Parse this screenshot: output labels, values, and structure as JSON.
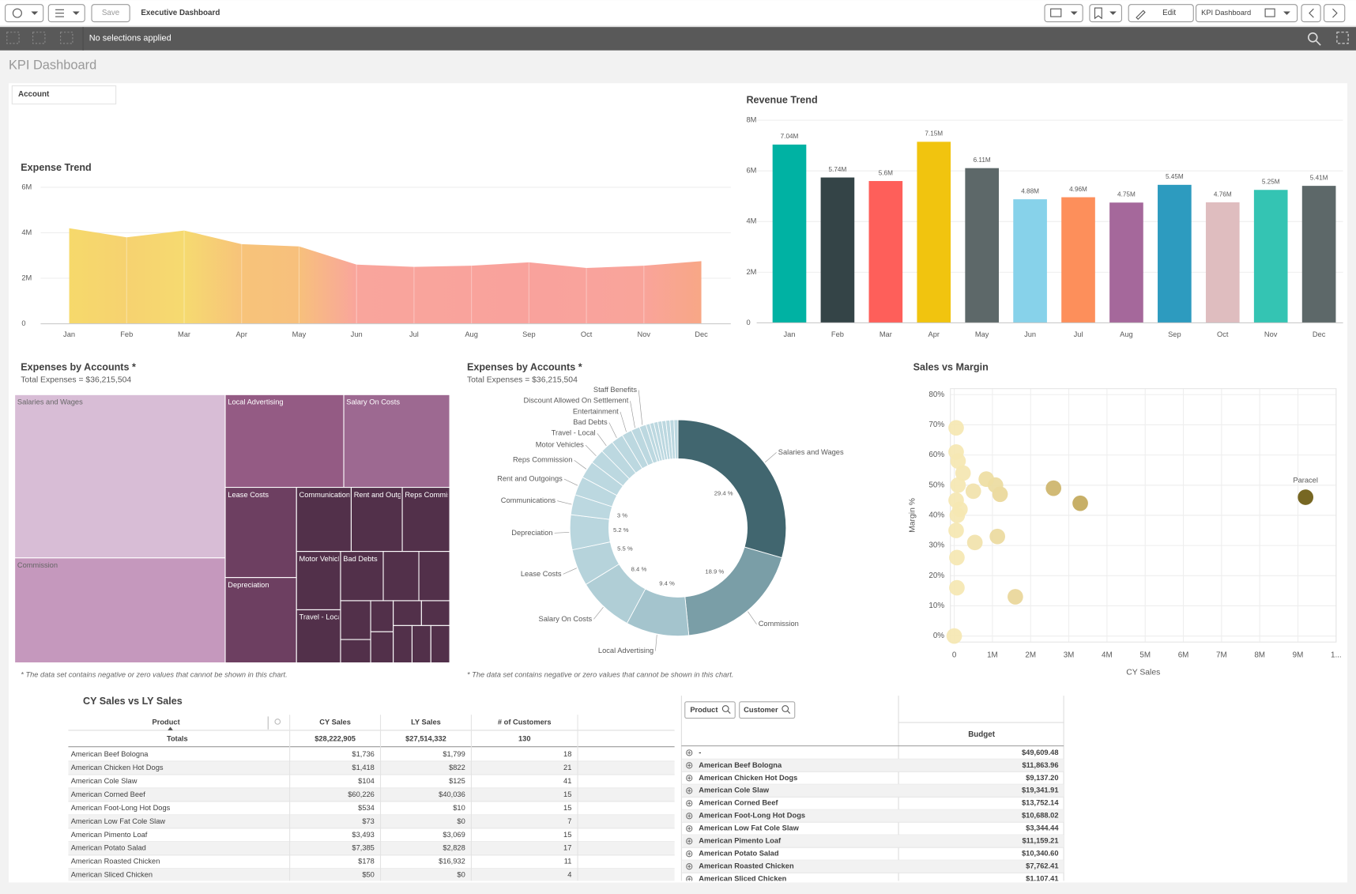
{
  "toolbar": {
    "save": "Save",
    "app_title": "Executive Dashboard",
    "edit": "Edit",
    "sheet_name": "KPI Dashboard"
  },
  "selection_bar": {
    "text": "No selections applied"
  },
  "sheet_title": "KPI Dashboard",
  "filter": {
    "label": "Account"
  },
  "chart_data": [
    {
      "type": "area",
      "title": "Expense Trend",
      "categories": [
        "Jan",
        "Feb",
        "Mar",
        "Apr",
        "May",
        "Jun",
        "Jul",
        "Aug",
        "Sep",
        "Oct",
        "Nov",
        "Dec"
      ],
      "values": [
        4200000,
        3800000,
        4100000,
        3500000,
        3400000,
        2600000,
        2500000,
        2550000,
        2700000,
        2450000,
        2550000,
        2750000
      ],
      "colors": [
        "#f6d96b",
        "#f6d270",
        "#f6da70",
        "#f7c37a",
        "#f7c07c",
        "#f9a59c",
        "#f9a49c",
        "#f9a39c",
        "#f9a29c",
        "#f9a39c",
        "#f9a49a",
        "#f8a786"
      ],
      "ylim": [
        0,
        6200000
      ],
      "yticks": [
        0,
        {
          "value": 2000000,
          "label": "2M"
        },
        {
          "value": 4000000,
          "label": "4M"
        },
        {
          "value": 6000000,
          "label": "6M"
        }
      ],
      "grid": true
    },
    {
      "type": "bar",
      "title": "Revenue Trend",
      "categories": [
        "Jan",
        "Feb",
        "Mar",
        "Apr",
        "May",
        "Jun",
        "Jul",
        "Aug",
        "Sep",
        "Oct",
        "Nov",
        "Dec"
      ],
      "values": [
        7040000,
        5740000,
        5600000,
        7150000,
        6110000,
        4880000,
        4960000,
        4750000,
        5450000,
        4760000,
        5250000,
        5410000
      ],
      "value_labels": [
        "7.04M",
        "5.74M",
        "5.6M",
        "7.15M",
        "6.11M",
        "4.88M",
        "4.96M",
        "4.75M",
        "5.45M",
        "4.76M",
        "5.25M",
        "5.41M"
      ],
      "colors": [
        "#00b2a3",
        "#344447",
        "#fe5f5a",
        "#f1c40f",
        "#5d6869",
        "#87d2ea",
        "#fd8f5b",
        "#a5689b",
        "#2d9bbf",
        "#dfbdbf",
        "#34c4b3",
        "#5d6869"
      ],
      "ylim": [
        0,
        8300000
      ],
      "yticks": [
        0,
        {
          "value": 2000000,
          "label": "2M"
        },
        {
          "value": 4000000,
          "label": "4M"
        },
        {
          "value": 6000000,
          "label": "6M"
        },
        {
          "value": 8000000,
          "label": "8M"
        }
      ],
      "grid": true
    },
    {
      "type": "treemap",
      "title": "Expenses by Accounts *",
      "subtitle": "Total Expenses = $36,215,504",
      "footnote": "* The data set contains negative or zero values that cannot be shown in this chart.",
      "categories": [
        "Salaries and Wages",
        "Commission",
        "Local Advertising",
        "Salary On Costs",
        "Lease Costs",
        "Depreciation",
        "Communications",
        "Rent and Outgoings",
        "Reps Commission",
        "Motor Vehicles",
        "Travel - Local",
        "Bad Debts",
        null,
        null,
        null,
        null,
        null,
        null,
        null,
        null,
        null,
        null,
        null
      ],
      "values": [
        29.4,
        18.9,
        9.4,
        8.4,
        5.5,
        5.2,
        3,
        2.8,
        2.6,
        2.2,
        2.0,
        1.8,
        1.5,
        1.3,
        1.0,
        0.6,
        0.6,
        0.6,
        0.6,
        0.6,
        0.6,
        0.6,
        0.6
      ],
      "colors": [
        "#d8bdd6",
        "#c598bd",
        "#945b84",
        "#9d6991",
        "#6d3f61",
        "#6d3f61",
        "#52304a",
        "#52304a",
        "#52304a",
        "#52304a",
        "#52304a",
        "#52304a",
        "#52304a",
        "#52304a",
        "#52304a",
        "#52304a",
        "#52304a",
        "#52304a",
        "#52304a",
        "#52304a",
        "#52304a",
        "#52304a",
        "#52304a"
      ]
    },
    {
      "type": "donut",
      "title": "Expenses by Accounts *",
      "subtitle": "Total Expenses = $36,215,504",
      "footnote": "* The data set contains negative or zero values that cannot be shown in this chart.",
      "categories": [
        "Salaries and Wages",
        "Commission",
        "Local Advertising",
        "Salary On Costs",
        "Lease Costs",
        "Depreciation",
        "Communications",
        "Rent and Outgoings",
        "Reps Commission",
        "Motor Vehicles",
        "Travel - Local",
        "Bad Debts",
        "Entertainment",
        "Discount Allowed On Settlement",
        "Staff Benefits",
        null,
        null,
        null,
        null,
        null,
        null,
        null,
        null
      ],
      "values": [
        29.4,
        18.9,
        9.4,
        8.4,
        5.5,
        5.2,
        3,
        2.8,
        2.6,
        2.2,
        2.0,
        1.8,
        1.5,
        1.3,
        1.0,
        0.6,
        0.6,
        0.6,
        0.6,
        0.6,
        0.6,
        0.6,
        0.6
      ],
      "value_labels": [
        "29.4 %",
        "18.9 %",
        "9.4 %",
        "8.4 %",
        "5.5 %",
        "5.2 %",
        "3 %",
        null,
        null,
        null,
        null,
        null,
        null,
        null,
        null,
        null,
        null,
        null,
        null,
        null,
        null,
        null,
        null
      ],
      "colors": [
        "#41666f",
        "#7a9ea7",
        "#a4c4cd",
        "#b0ced6",
        "#b6d3db",
        "#b9d6de",
        "#bcd8e0",
        "#bcd8e0",
        "#bcd8e0",
        "#bcd8e0",
        "#bcd8e0",
        "#bcd8e0",
        "#bcd8e0",
        "#bcd8e0",
        "#bcd8e0",
        "#bcd8e0",
        "#bcd8e0",
        "#bcd8e0",
        "#bcd8e0",
        "#bcd8e0",
        "#bcd8e0",
        "#bcd8e0",
        "#bcd8e0"
      ]
    },
    {
      "type": "scatter",
      "title": "Sales vs Margin",
      "x_label": "CY Sales",
      "y_label": "Margin %",
      "x": [
        9200000,
        3300000,
        2600000,
        1600000,
        1200000,
        1080000,
        840000,
        1130000,
        540000,
        500000,
        230000,
        100000,
        50000,
        50000,
        100000,
        50000,
        80000,
        50000,
        70000,
        70000,
        0,
        150000
      ],
      "y": [
        46,
        44,
        49,
        13,
        47,
        50,
        52,
        33,
        31,
        48,
        54,
        58,
        61,
        69,
        50,
        45,
        40,
        35,
        26,
        16,
        0,
        42
      ],
      "colors": [
        "#6b5a10",
        "#c2a85a",
        "#cdb46a",
        "#e9d699",
        "#ead89a",
        "#ecdb9f",
        "#eedda2",
        "#ecda9e",
        "#f1e2ab",
        "#f1e2ab",
        "#f4e6b1",
        "#f5e7b2",
        "#f5e7b2",
        "#f5e7b2",
        "#f5e7b2",
        "#f5e7b2",
        "#f5e7b2",
        "#f5e7b2",
        "#f5e7b2",
        "#f5e7b2",
        "#f5e7b2",
        "#f5e7b2"
      ],
      "point_labels": [
        "Paracel",
        null,
        null,
        null,
        null,
        null,
        null,
        null,
        null,
        null,
        null,
        null,
        null,
        null,
        null,
        null,
        null,
        null,
        null,
        null,
        null,
        null
      ],
      "xlim": [
        -100000,
        10000000
      ],
      "ylim": [
        -2,
        82
      ],
      "xticks": [
        0,
        {
          "value": 1000000,
          "label": "1M"
        },
        {
          "value": 2000000,
          "label": "2M"
        },
        {
          "value": 3000000,
          "label": "3M"
        },
        {
          "value": 4000000,
          "label": "4M"
        },
        {
          "value": 5000000,
          "label": "5M"
        },
        {
          "value": 6000000,
          "label": "6M"
        },
        {
          "value": 7000000,
          "label": "7M"
        },
        {
          "value": 8000000,
          "label": "8M"
        },
        {
          "value": 9000000,
          "label": "9M"
        },
        {
          "value": 10000000,
          "label": "1..."
        }
      ],
      "yticks": [
        {
          "value": 0,
          "label": "0%"
        },
        {
          "value": 10,
          "label": "10%"
        },
        {
          "value": 20,
          "label": "20%"
        },
        {
          "value": 30,
          "label": "30%"
        },
        {
          "value": 40,
          "label": "40%"
        },
        {
          "value": 50,
          "label": "50%"
        },
        {
          "value": 60,
          "label": "60%"
        },
        {
          "value": 70,
          "label": "70%"
        },
        {
          "value": 80,
          "label": "80%"
        }
      ],
      "grid": true
    }
  ],
  "cy_ly_table": {
    "title": "CY Sales vs LY Sales",
    "columns": [
      "Product",
      "CY Sales",
      "LY Sales",
      "# of Customers"
    ],
    "totals": [
      "Totals",
      "$28,222,905",
      "$27,514,332",
      "130"
    ],
    "rows": [
      [
        "American Beef Bologna",
        "$1,736",
        "$1,799",
        "18"
      ],
      [
        "American Chicken Hot Dogs",
        "$1,418",
        "$822",
        "21"
      ],
      [
        "American Cole Slaw",
        "$104",
        "$125",
        "41"
      ],
      [
        "American Corned Beef",
        "$60,226",
        "$40,036",
        "15"
      ],
      [
        "American Foot-Long Hot Dogs",
        "$534",
        "$10",
        "15"
      ],
      [
        "American Low Fat Cole Slaw",
        "$73",
        "$0",
        "7"
      ],
      [
        "American Pimento Loaf",
        "$3,493",
        "$3,069",
        "15"
      ],
      [
        "American Potato Salad",
        "$7,385",
        "$2,828",
        "17"
      ],
      [
        "American Roasted Chicken",
        "$178",
        "$16,932",
        "11"
      ],
      [
        "American Sliced Chicken",
        "$50",
        "$0",
        "4"
      ]
    ]
  },
  "pivot": {
    "dimension_buttons": [
      "Product",
      "Customer"
    ],
    "measure": "Budget",
    "rows": [
      [
        "-",
        "$49,609.48"
      ],
      [
        "American Beef Bologna",
        "$11,863.96"
      ],
      [
        "American Chicken Hot Dogs",
        "$9,137.20"
      ],
      [
        "American Cole Slaw",
        "$19,341.91"
      ],
      [
        "American Corned Beef",
        "$13,752.14"
      ],
      [
        "American Foot-Long Hot Dogs",
        "$10,688.02"
      ],
      [
        "American Low Fat Cole Slaw",
        "$3,344.44"
      ],
      [
        "American Pimento Loaf",
        "$11,159.21"
      ],
      [
        "American Potato Salad",
        "$10,340.60"
      ],
      [
        "American Roasted Chicken",
        "$7,762.41"
      ],
      [
        "American Sliced Chicken",
        "$1,107.41"
      ]
    ]
  }
}
